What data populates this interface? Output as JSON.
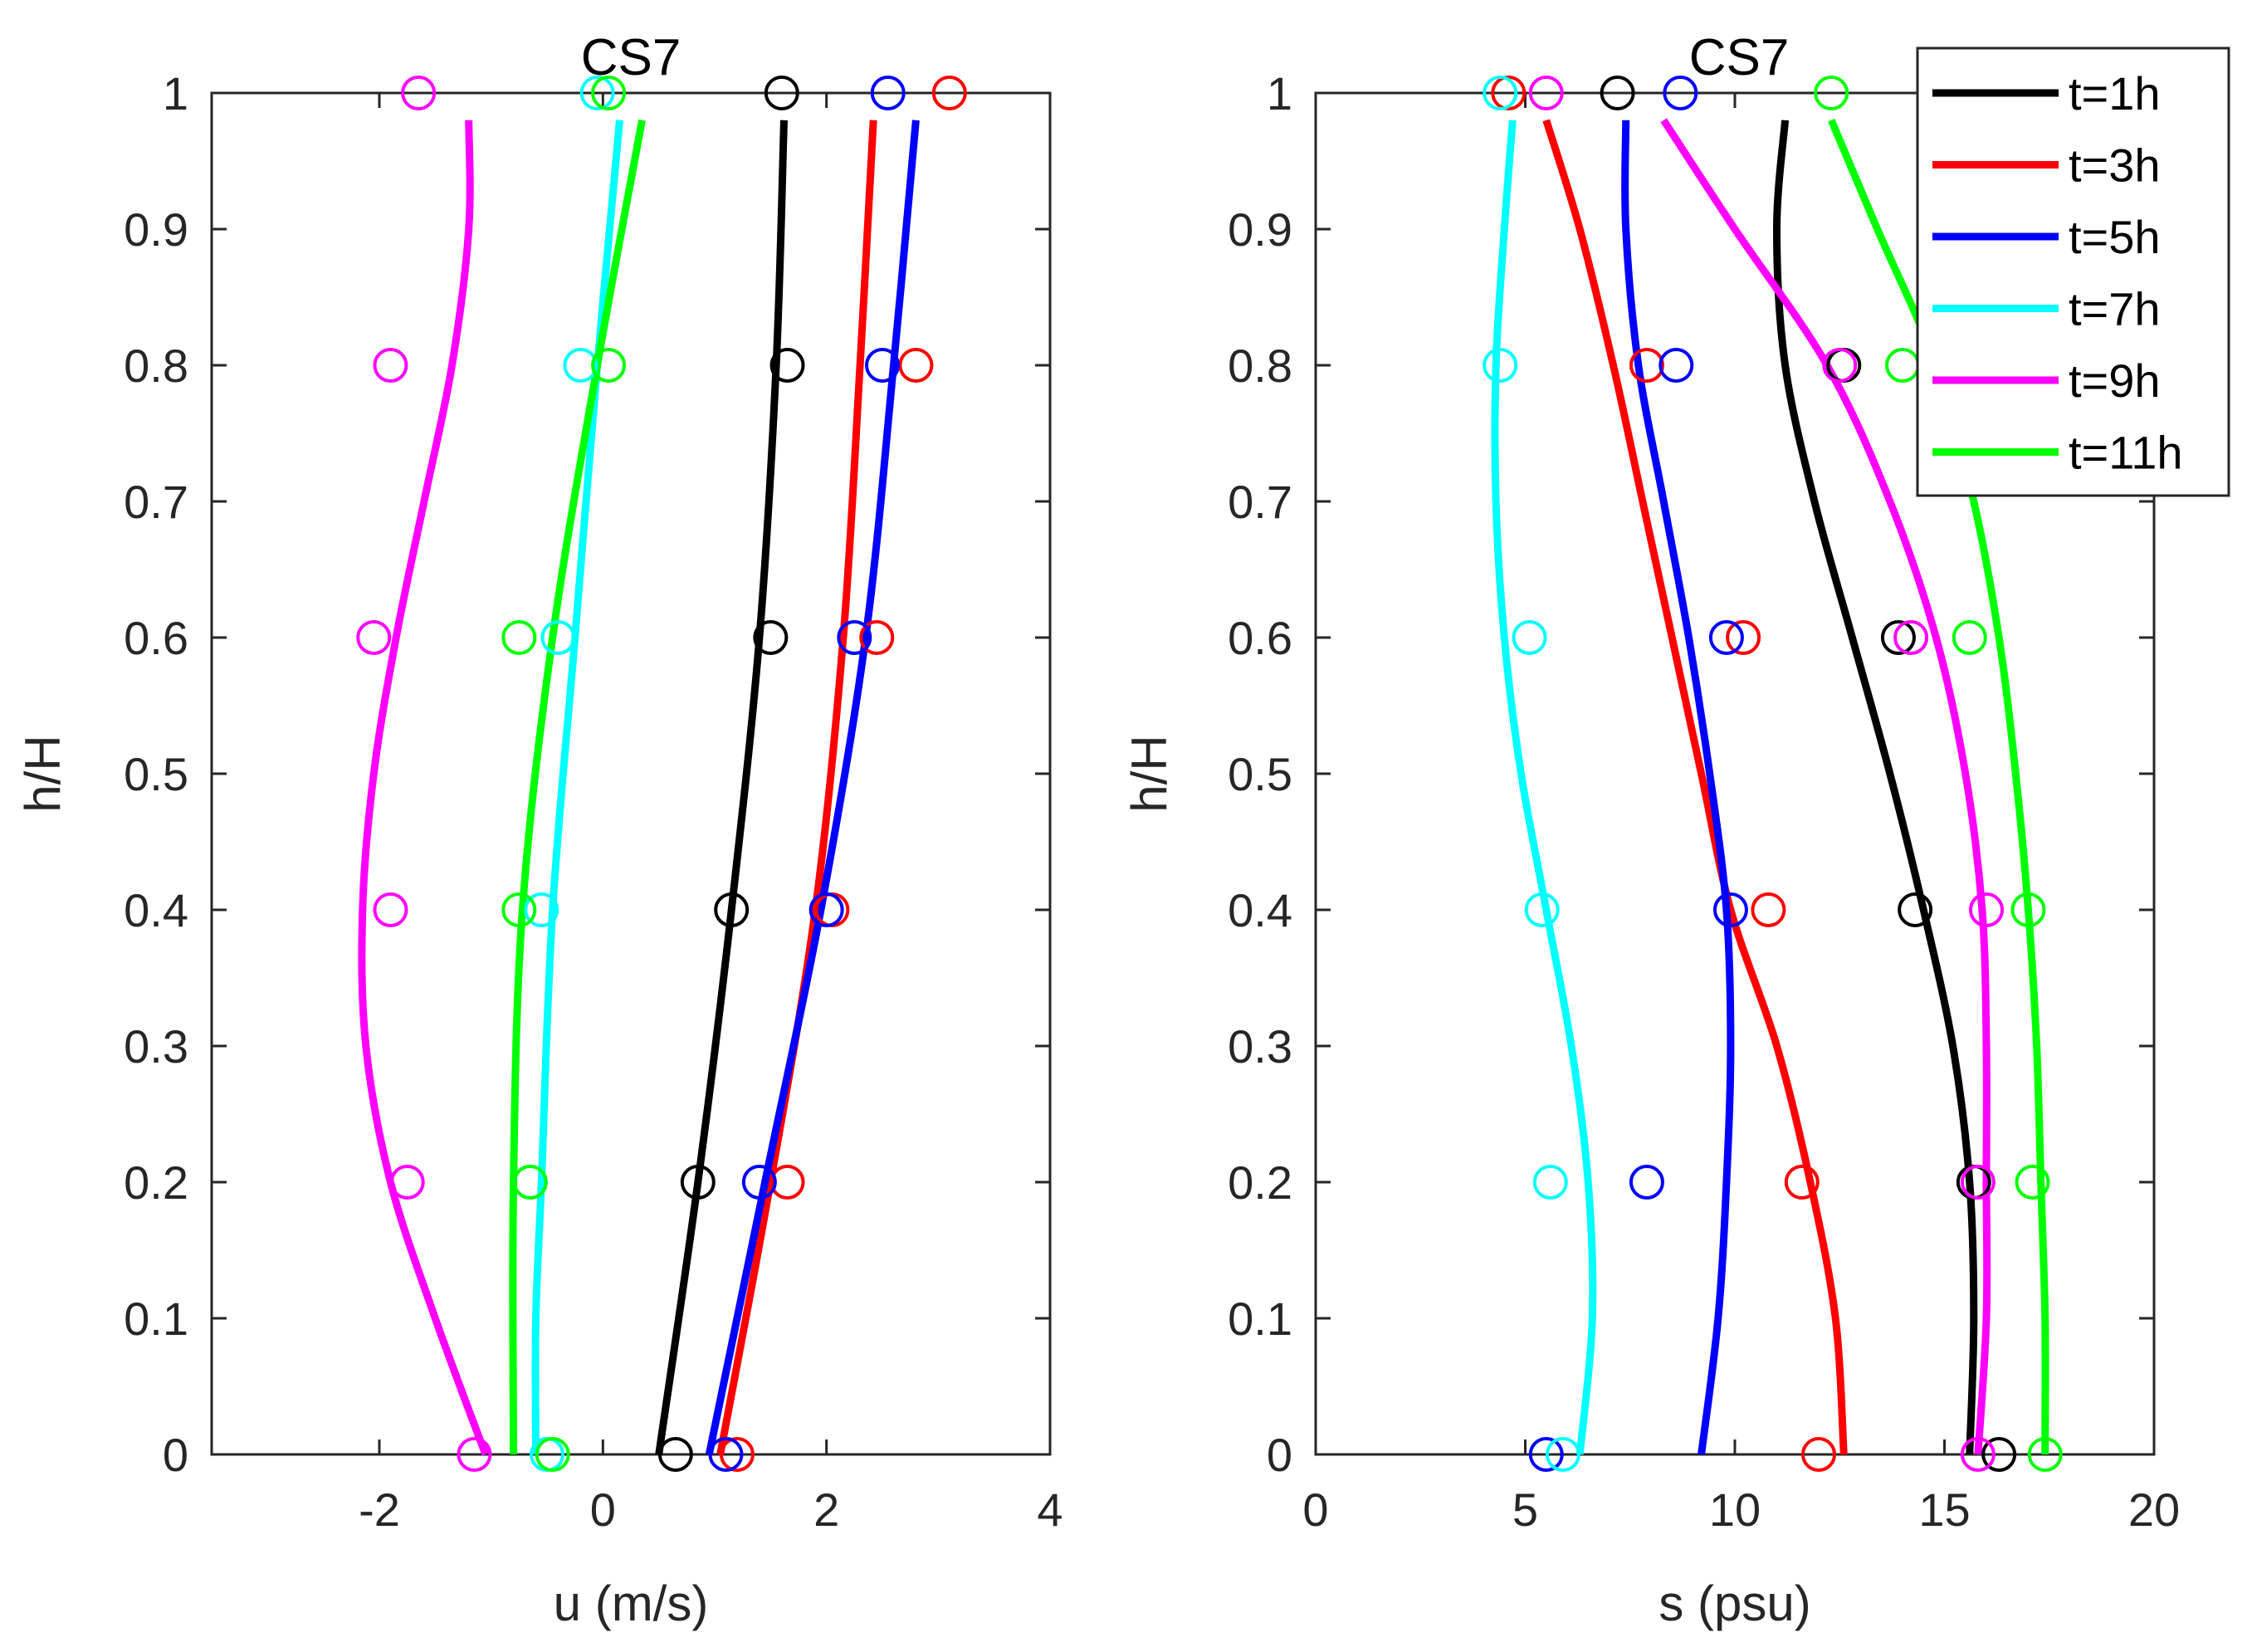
{
  "colors": {
    "t1": "#000000",
    "t3": "#ff0000",
    "t5": "#0000ff",
    "t7": "#00ffff",
    "t9": "#ff00ff",
    "t11": "#00ff00"
  },
  "legend": {
    "position": "top-right",
    "entries": [
      {
        "key": "t1",
        "label": "t=1h"
      },
      {
        "key": "t3",
        "label": "t=3h"
      },
      {
        "key": "t5",
        "label": "t=5h"
      },
      {
        "key": "t7",
        "label": "t=7h"
      },
      {
        "key": "t9",
        "label": "t=9h"
      },
      {
        "key": "t11",
        "label": "t=11h"
      }
    ]
  },
  "chart_data": [
    {
      "type": "line",
      "title": "CS7",
      "xlabel": "u (m/s)",
      "ylabel": "h/H",
      "xlim": [
        -3.5,
        4
      ],
      "ylim": [
        0,
        1
      ],
      "xticks": [
        -2,
        0,
        2,
        4
      ],
      "xtick_labels": [
        "-2",
        "0",
        "2",
        "4"
      ],
      "yticks": [
        0,
        0.1,
        0.2,
        0.3,
        0.4,
        0.5,
        0.6,
        0.7,
        0.8,
        0.9,
        1
      ],
      "ytick_labels": [
        "0",
        "0.1",
        "0.2",
        "0.3",
        "0.4",
        "0.5",
        "0.6",
        "0.7",
        "0.8",
        "0.9",
        "1"
      ],
      "series": [
        {
          "name": "t=1h",
          "key": "t1",
          "curve": {
            "y": [
              0.0,
              0.2,
              0.4,
              0.6,
              0.8,
              0.98
            ],
            "x": [
              0.5,
              0.85,
              1.15,
              1.4,
              1.55,
              1.62
            ]
          },
          "points": {
            "y": [
              0,
              0.2,
              0.4,
              0.6,
              0.8,
              1
            ],
            "x": [
              0.65,
              0.85,
              1.15,
              1.5,
              1.65,
              1.6
            ]
          }
        },
        {
          "name": "t=3h",
          "key": "t3",
          "curve": {
            "y": [
              0.0,
              0.2,
              0.4,
              0.6,
              0.8,
              0.98
            ],
            "x": [
              1.05,
              1.5,
              1.9,
              2.15,
              2.3,
              2.42
            ]
          },
          "points": {
            "y": [
              0,
              0.2,
              0.4,
              0.6,
              0.8,
              1
            ],
            "x": [
              1.2,
              1.65,
              2.05,
              2.45,
              2.8,
              3.1
            ]
          }
        },
        {
          "name": "t=5h",
          "key": "t5",
          "curve": {
            "y": [
              0.0,
              0.2,
              0.4,
              0.6,
              0.8,
              0.98
            ],
            "x": [
              0.95,
              1.45,
              1.95,
              2.35,
              2.6,
              2.8
            ]
          },
          "points": {
            "y": [
              0,
              0.2,
              0.4,
              0.6,
              0.8,
              1
            ],
            "x": [
              1.1,
              1.4,
              2.0,
              2.25,
              2.5,
              2.55
            ]
          }
        },
        {
          "name": "t=7h",
          "key": "t7",
          "curve": {
            "y": [
              0.0,
              0.1,
              0.2,
              0.4,
              0.6,
              0.8,
              0.98
            ],
            "x": [
              -0.6,
              -0.6,
              -0.55,
              -0.45,
              -0.25,
              -0.05,
              0.15
            ]
          },
          "points": {
            "y": [
              0,
              0.2,
              0.4,
              0.6,
              0.8,
              1
            ],
            "x": [
              -0.5,
              -0.65,
              -0.55,
              -0.4,
              -0.2,
              -0.05
            ]
          }
        },
        {
          "name": "t=9h",
          "key": "t9",
          "curve": {
            "y": [
              0.0,
              0.1,
              0.2,
              0.3,
              0.4,
              0.5,
              0.6,
              0.7,
              0.8,
              0.9,
              0.98
            ],
            "x": [
              -1.05,
              -1.5,
              -1.9,
              -2.12,
              -2.15,
              -2.05,
              -1.85,
              -1.6,
              -1.35,
              -1.2,
              -1.2
            ]
          },
          "points": {
            "y": [
              0,
              0.2,
              0.4,
              0.6,
              0.8,
              1
            ],
            "x": [
              -1.15,
              -1.75,
              -1.9,
              -2.05,
              -1.9,
              -1.65
            ]
          }
        },
        {
          "name": "t=11h",
          "key": "t11",
          "curve": {
            "y": [
              0.0,
              0.2,
              0.4,
              0.6,
              0.8,
              0.98
            ],
            "x": [
              -0.8,
              -0.8,
              -0.72,
              -0.45,
              -0.05,
              0.35
            ]
          },
          "points": {
            "y": [
              0,
              0.2,
              0.4,
              0.6,
              0.8,
              1
            ],
            "x": [
              -0.45,
              -0.65,
              -0.75,
              -0.75,
              0.05,
              0.05
            ]
          }
        }
      ]
    },
    {
      "type": "line",
      "title": "CS7",
      "xlabel": "s (psu)",
      "ylabel": "h/H",
      "xlim": [
        0,
        20
      ],
      "ylim": [
        0,
        1
      ],
      "xticks": [
        0,
        5,
        10,
        15,
        20
      ],
      "xtick_labels": [
        "0",
        "5",
        "10",
        "15",
        "20"
      ],
      "yticks": [
        0,
        0.1,
        0.2,
        0.3,
        0.4,
        0.5,
        0.6,
        0.7,
        0.8,
        0.9,
        1
      ],
      "ytick_labels": [
        "0",
        "0.1",
        "0.2",
        "0.3",
        "0.4",
        "0.5",
        "0.6",
        "0.7",
        "0.8",
        "0.9",
        "1"
      ],
      "series": [
        {
          "name": "t=1h",
          "key": "t1",
          "curve": {
            "y": [
              0.0,
              0.1,
              0.2,
              0.3,
              0.4,
              0.5,
              0.6,
              0.7,
              0.8,
              0.9,
              0.98
            ],
            "x": [
              15.6,
              15.7,
              15.6,
              15.2,
              14.5,
              13.7,
              12.8,
              11.9,
              11.2,
              11.0,
              11.2
            ]
          },
          "points": {
            "y": [
              0,
              0.2,
              0.4,
              0.6,
              0.8,
              1
            ],
            "x": [
              16.3,
              15.7,
              14.3,
              13.9,
              12.6,
              7.2
            ]
          }
        },
        {
          "name": "t=3h",
          "key": "t3",
          "curve": {
            "y": [
              0.0,
              0.1,
              0.2,
              0.3,
              0.4,
              0.5,
              0.6,
              0.7,
              0.8,
              0.9,
              0.98
            ],
            "x": [
              12.6,
              12.4,
              11.8,
              11.0,
              9.9,
              9.2,
              8.5,
              7.8,
              7.1,
              6.3,
              5.5
            ]
          },
          "points": {
            "y": [
              0,
              0.2,
              0.4,
              0.6,
              0.8,
              1
            ],
            "x": [
              12.0,
              11.6,
              10.8,
              10.2,
              7.9,
              4.6
            ]
          }
        },
        {
          "name": "t=5h",
          "key": "t5",
          "curve": {
            "y": [
              0.0,
              0.1,
              0.2,
              0.3,
              0.4,
              0.5,
              0.6,
              0.7,
              0.8,
              0.9,
              0.98
            ],
            "x": [
              9.2,
              9.6,
              9.8,
              9.9,
              9.8,
              9.4,
              8.9,
              8.3,
              7.7,
              7.4,
              7.4
            ]
          },
          "points": {
            "y": [
              0,
              0.2,
              0.4,
              0.6,
              0.8,
              1
            ],
            "x": [
              5.5,
              7.9,
              9.9,
              9.8,
              8.6,
              8.7
            ]
          }
        },
        {
          "name": "t=7h",
          "key": "t7",
          "curve": {
            "y": [
              0.0,
              0.1,
              0.2,
              0.3,
              0.4,
              0.5,
              0.6,
              0.7,
              0.8,
              0.9,
              0.98
            ],
            "x": [
              6.3,
              6.6,
              6.5,
              6.1,
              5.5,
              4.9,
              4.5,
              4.3,
              4.3,
              4.5,
              4.7
            ]
          },
          "points": {
            "y": [
              0,
              0.2,
              0.4,
              0.6,
              0.8,
              1
            ],
            "x": [
              5.9,
              5.6,
              5.4,
              5.1,
              4.4,
              4.4
            ]
          }
        },
        {
          "name": "t=9h",
          "key": "t9",
          "curve": {
            "y": [
              0.0,
              0.1,
              0.2,
              0.3,
              0.4,
              0.5,
              0.6,
              0.7,
              0.8,
              0.9,
              0.98
            ],
            "x": [
              15.8,
              16.0,
              16.0,
              16.0,
              15.9,
              15.5,
              14.8,
              13.7,
              12.2,
              10.0,
              8.3
            ]
          },
          "points": {
            "y": [
              0,
              0.2,
              0.4,
              0.6,
              0.8,
              1
            ],
            "x": [
              15.8,
              15.8,
              16.0,
              14.2,
              12.5,
              5.5
            ]
          }
        },
        {
          "name": "t=11h",
          "key": "t11",
          "curve": {
            "y": [
              0.0,
              0.1,
              0.2,
              0.3,
              0.4,
              0.5,
              0.6,
              0.7,
              0.8,
              0.9,
              0.98
            ],
            "x": [
              17.4,
              17.4,
              17.3,
              17.2,
              17.0,
              16.7,
              16.3,
              15.7,
              14.8,
              13.4,
              12.3
            ]
          },
          "points": {
            "y": [
              0,
              0.2,
              0.4,
              0.6,
              0.8,
              1
            ],
            "x": [
              17.4,
              17.1,
              17.0,
              15.6,
              14.0,
              12.3
            ]
          }
        }
      ]
    }
  ]
}
